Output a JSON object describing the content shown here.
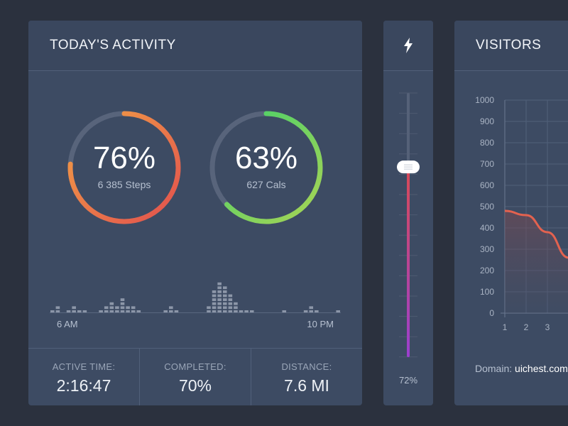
{
  "activity": {
    "title": "TODAY'S ACTIVITY",
    "rings": [
      {
        "percent": "76%",
        "sub": "6 385 Steps",
        "value": 0.76,
        "color_start": "#f2a245",
        "color_end": "#e2504e"
      },
      {
        "percent": "63%",
        "sub": "627 Cals",
        "value": 0.63,
        "color_start": "#3fd06b",
        "color_end": "#a8d455"
      }
    ],
    "histogram": [
      1,
      2,
      0,
      1,
      2,
      1,
      1,
      0,
      0,
      1,
      2,
      3,
      2,
      4,
      2,
      2,
      1,
      0,
      0,
      0,
      0,
      1,
      2,
      1,
      0,
      0,
      0,
      0,
      0,
      2,
      6,
      8,
      7,
      5,
      3,
      1,
      1,
      1,
      0,
      0,
      0,
      0,
      0,
      1,
      0,
      0,
      0,
      1,
      2,
      1,
      0,
      0,
      0,
      1
    ],
    "start_label": "6 AM",
    "end_label": "10 PM",
    "stats": [
      {
        "label": "ACTIVE TIME:",
        "value": "2:16:47"
      },
      {
        "label": "COMPLETED:",
        "value": "70%"
      },
      {
        "label": "DISTANCE:",
        "value": "7.6 MI"
      }
    ]
  },
  "power": {
    "icon": "lightning-icon",
    "level_percent": 72,
    "label": "72%",
    "gradient_top": "#d94a55",
    "gradient_bottom": "#9b3fcf"
  },
  "visitors": {
    "title": "VISITORS",
    "y_ticks": [
      "1000",
      "900",
      "800",
      "700",
      "600",
      "500",
      "400",
      "300",
      "200",
      "100",
      "0"
    ],
    "x_ticks": [
      "1",
      "2",
      "3"
    ],
    "domain_label": "Domain:",
    "domain_value": "uichest.com"
  },
  "chart_data": {
    "type": "area",
    "title": "VISITORS",
    "x": [
      1,
      2,
      3,
      4
    ],
    "values": [
      480,
      460,
      380,
      260
    ],
    "ylim": [
      0,
      1000
    ],
    "line_color": "#e3624f"
  }
}
